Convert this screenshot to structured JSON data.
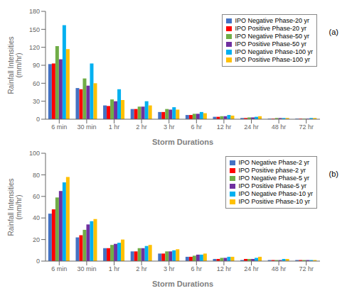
{
  "chart_data": [
    {
      "type": "bar",
      "xlabel": "Storm Durations",
      "ylabel": "Rainfall Intensities\n(mm/hr)",
      "annotation": "(a)",
      "ylim": [
        0,
        180
      ],
      "yticks": [
        0,
        30,
        60,
        90,
        120,
        150,
        180
      ],
      "grid": false,
      "legend": "upper right",
      "categories": [
        "6 min",
        "30 min",
        "1 hr",
        "2 hr",
        "3 hr",
        "6 hr",
        "12 hr",
        "24 hr",
        "48 hr",
        "72 hr"
      ],
      "series": [
        {
          "name": "IPO Negative Phase-20 yr",
          "color": "#4472C4",
          "values": [
            92,
            52,
            23,
            17,
            12,
            7,
            4,
            2,
            1,
            1
          ]
        },
        {
          "name": "IPO Positive Phase-20 yr",
          "color": "#FF0000",
          "values": [
            93,
            50,
            22,
            17,
            12,
            7,
            4,
            2,
            1,
            1
          ]
        },
        {
          "name": "IPO Negative Phase-50 yr",
          "color": "#70AD47",
          "values": [
            122,
            68,
            33,
            21,
            17,
            9,
            5,
            3,
            2,
            1
          ]
        },
        {
          "name": "IPO Positive Phase-50 yr",
          "color": "#7030A0",
          "values": [
            100,
            56,
            30,
            21,
            16,
            9,
            5,
            3,
            2,
            1
          ]
        },
        {
          "name": "IPO Negative Phase-100 yr",
          "color": "#00B0F0",
          "values": [
            157,
            93,
            50,
            30,
            20,
            12,
            7,
            4,
            2,
            2
          ]
        },
        {
          "name": "IPO Positive Phase-100 yr",
          "color": "#FFC000",
          "values": [
            117,
            60,
            32,
            23,
            16,
            10,
            6,
            5,
            2,
            2
          ]
        }
      ]
    },
    {
      "type": "bar",
      "xlabel": "Storm Durations",
      "ylabel": "Rainfall Intensities\n(mm/hr)",
      "annotation": "(b)",
      "ylim": [
        0,
        100
      ],
      "yticks": [
        0,
        20,
        40,
        60,
        80,
        100
      ],
      "grid": false,
      "legend": "upper right",
      "categories": [
        "6 min",
        "30 min",
        "1 hr",
        "2 hr",
        "3 hr",
        "6 hr",
        "12 hr",
        "24 hr",
        "48 hr",
        "72 hr"
      ],
      "series": [
        {
          "name": "IPO Negative Phase-2 yr",
          "color": "#4472C4",
          "values": [
            44,
            22,
            12,
            9,
            7,
            4,
            2,
            1,
            1,
            1
          ]
        },
        {
          "name": "IPO Positive phase-2 yr",
          "color": "#FF0000",
          "values": [
            48,
            24,
            12,
            9,
            7,
            4,
            2,
            2,
            1,
            1
          ]
        },
        {
          "name": "IPO Negative Phase-5 yr",
          "color": "#70AD47",
          "values": [
            59,
            29,
            15,
            12,
            9,
            5,
            3,
            2,
            1,
            1
          ]
        },
        {
          "name": "IPO Positive Phase-5 yr",
          "color": "#7030A0",
          "values": [
            65,
            34,
            16,
            12,
            9,
            6,
            3,
            2,
            1,
            1
          ]
        },
        {
          "name": "IPO Negative Phase-10 yr",
          "color": "#00B0F0",
          "values": [
            73,
            37,
            17,
            14,
            10,
            6,
            4,
            3,
            2,
            1
          ]
        },
        {
          "name": "IPO Positive Phase-10 yr",
          "color": "#FFC000",
          "values": [
            78,
            39,
            20,
            15,
            11,
            7,
            4,
            4,
            2,
            1
          ]
        }
      ]
    }
  ]
}
